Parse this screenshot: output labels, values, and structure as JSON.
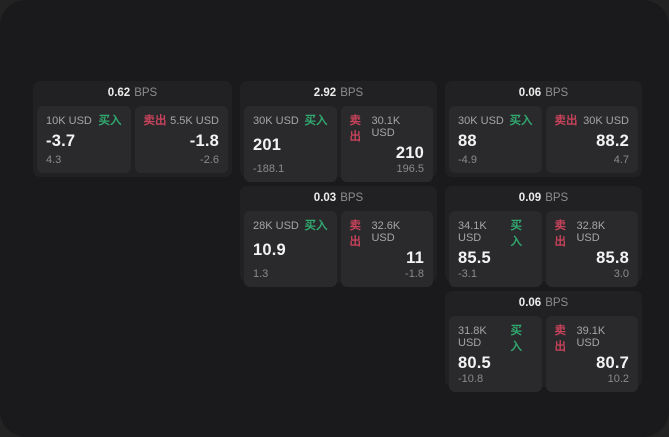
{
  "labels": {
    "bps": "BPS",
    "buy": "买入",
    "sell": "卖出"
  },
  "colors": {
    "background_outer": "#232323",
    "background_window": "#1a1a1c",
    "card": "#212123",
    "cell": "#2a2a2c",
    "buy_green": "#31a86f",
    "sell_red": "#c5425a",
    "price_text": "#f3f3f3",
    "muted_text": "#8d8d8f"
  },
  "cards": [
    {
      "bps": "0.62",
      "buy": {
        "amount": "10K USD",
        "price": "-3.7",
        "delta": "4.3"
      },
      "sell": {
        "amount": "5.5K USD",
        "price": "-1.8",
        "delta": "-2.6"
      }
    },
    {
      "bps": "2.92",
      "buy": {
        "amount": "30K USD",
        "price": "201",
        "delta": "-188.1"
      },
      "sell": {
        "amount": "30.1K USD",
        "price": "210",
        "delta": "196.5"
      }
    },
    {
      "bps": "0.06",
      "buy": {
        "amount": "30K USD",
        "price": "88",
        "delta": "-4.9"
      },
      "sell": {
        "amount": "30K USD",
        "price": "88.2",
        "delta": "4.7"
      }
    },
    {
      "bps": "0.03",
      "buy": {
        "amount": "28K USD",
        "price": "10.9",
        "delta": "1.3"
      },
      "sell": {
        "amount": "32.6K USD",
        "price": "11",
        "delta": "-1.8"
      }
    },
    {
      "bps": "0.09",
      "buy": {
        "amount": "34.1K USD",
        "price": "85.5",
        "delta": "-3.1"
      },
      "sell": {
        "amount": "32.8K USD",
        "price": "85.8",
        "delta": "3.0"
      }
    },
    {
      "bps": "0.06",
      "buy": {
        "amount": "31.8K USD",
        "price": "80.5",
        "delta": "-10.8"
      },
      "sell": {
        "amount": "39.1K USD",
        "price": "80.7",
        "delta": "10.2"
      }
    }
  ]
}
